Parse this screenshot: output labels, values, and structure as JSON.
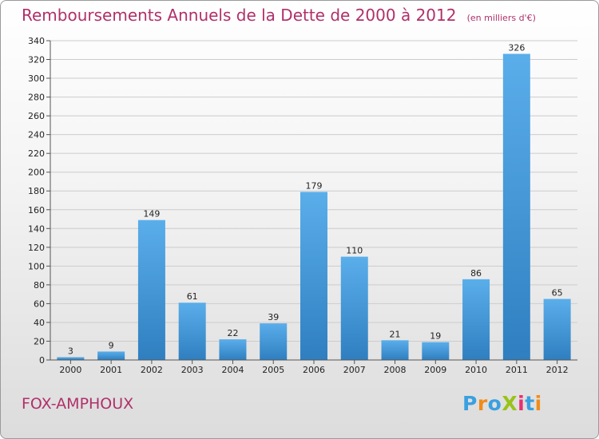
{
  "chart_data": {
    "type": "bar",
    "title": "Remboursements Annuels de la Dette de 2000 à 2012",
    "unit": "(en milliers d'€)",
    "categories": [
      "2000",
      "2001",
      "2002",
      "2003",
      "2004",
      "2005",
      "2006",
      "2007",
      "2008",
      "2009",
      "2010",
      "2011",
      "2012"
    ],
    "values": [
      3,
      9,
      149,
      61,
      22,
      39,
      179,
      110,
      21,
      19,
      86,
      326,
      65
    ],
    "ylim": [
      0,
      340
    ],
    "yticks": [
      0,
      20,
      40,
      60,
      80,
      100,
      120,
      140,
      160,
      180,
      200,
      220,
      240,
      260,
      280,
      300,
      320,
      340
    ],
    "grid": true,
    "xlabel": "",
    "ylabel": ""
  },
  "footer": {
    "commune": "FOX-AMPHOUX",
    "logo": "ProXiti"
  },
  "colors": {
    "title": "#b0306a",
    "bar_top": "#5aaeea",
    "bar_bottom": "#2f7fc0",
    "grid": "#cccccc",
    "logo_letters": [
      "#3aa0e0",
      "#f08c1a",
      "#3aa0e0",
      "#9ac21a",
      "#e83070",
      "#3aa0e0",
      "#f08c1a"
    ]
  }
}
